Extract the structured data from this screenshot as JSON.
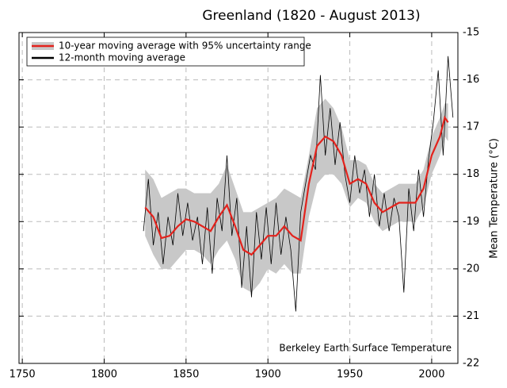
{
  "chart_data": {
    "type": "line",
    "title": "Greenland (1820 - August 2013)",
    "y_label": "Mean Temperature (°C)",
    "annotation": "Berkeley Earth Surface Temperature",
    "xlim": [
      1748,
      2016
    ],
    "ylim": [
      -22,
      -15
    ],
    "xticks": [
      1750,
      1800,
      1850,
      1900,
      1950,
      2000
    ],
    "yticks": [
      -22,
      -21,
      -20,
      -19,
      -18,
      -17,
      -16,
      -15
    ],
    "grid": true,
    "legend": "upper-left",
    "y_axis_side": "right",
    "series": [
      {
        "name": "10-year moving average with 95% uncertainty range",
        "color": "#e3221c",
        "band_color": "#c8c8c8",
        "x": [
          1825,
          1830,
          1835,
          1840,
          1845,
          1850,
          1855,
          1860,
          1865,
          1870,
          1875,
          1880,
          1885,
          1890,
          1895,
          1900,
          1905,
          1910,
          1915,
          1920,
          1925,
          1930,
          1935,
          1940,
          1945,
          1950,
          1955,
          1960,
          1965,
          1970,
          1975,
          1980,
          1985,
          1990,
          1995,
          2000,
          2005,
          2008,
          2010
        ],
        "values": [
          -18.7,
          -18.9,
          -19.35,
          -19.3,
          -19.1,
          -18.95,
          -19.0,
          -19.1,
          -19.2,
          -18.9,
          -18.65,
          -19.1,
          -19.6,
          -19.7,
          -19.5,
          -19.3,
          -19.3,
          -19.1,
          -19.3,
          -19.4,
          -18.2,
          -17.4,
          -17.2,
          -17.3,
          -17.6,
          -18.2,
          -18.1,
          -18.2,
          -18.6,
          -18.8,
          -18.7,
          -18.6,
          -18.6,
          -18.6,
          -18.3,
          -17.6,
          -17.2,
          -16.8,
          -16.9
        ],
        "upper": [
          -17.9,
          -18.1,
          -18.5,
          -18.4,
          -18.3,
          -18.3,
          -18.4,
          -18.4,
          -18.4,
          -18.2,
          -17.8,
          -18.3,
          -18.8,
          -18.8,
          -18.7,
          -18.6,
          -18.5,
          -18.3,
          -18.4,
          -18.5,
          -17.6,
          -16.6,
          -16.4,
          -16.6,
          -17.0,
          -17.7,
          -17.7,
          -17.8,
          -18.2,
          -18.4,
          -18.3,
          -18.2,
          -18.2,
          -18.2,
          -17.9,
          -17.2,
          -16.8,
          -16.5,
          -16.5
        ],
        "lower": [
          -19.3,
          -19.7,
          -20.0,
          -20.0,
          -19.8,
          -19.6,
          -19.6,
          -19.7,
          -19.9,
          -19.6,
          -19.4,
          -19.8,
          -20.4,
          -20.5,
          -20.3,
          -20.0,
          -20.1,
          -19.9,
          -20.1,
          -20.1,
          -18.9,
          -18.2,
          -18.0,
          -18.0,
          -18.2,
          -18.7,
          -18.5,
          -18.6,
          -19.0,
          -19.2,
          -19.1,
          -19.0,
          -19.0,
          -19.0,
          -18.7,
          -18.0,
          -17.6,
          -17.2,
          -17.3
        ]
      },
      {
        "name": "12-month moving average",
        "color": "#000000",
        "x": [
          1824,
          1827,
          1830,
          1833,
          1836,
          1839,
          1842,
          1845,
          1848,
          1851,
          1854,
          1857,
          1860,
          1863,
          1866,
          1869,
          1872,
          1875,
          1878,
          1881,
          1884,
          1887,
          1890,
          1893,
          1896,
          1899,
          1902,
          1905,
          1908,
          1911,
          1914,
          1917,
          1920,
          1923,
          1926,
          1929,
          1932,
          1935,
          1938,
          1941,
          1944,
          1947,
          1950,
          1953,
          1956,
          1959,
          1962,
          1965,
          1968,
          1971,
          1974,
          1977,
          1980,
          1983,
          1986,
          1989,
          1992,
          1995,
          1998,
          2001,
          2004,
          2007,
          2010,
          2013
        ],
        "values": [
          -19.2,
          -18.1,
          -19.5,
          -18.8,
          -19.9,
          -18.9,
          -19.5,
          -18.4,
          -19.3,
          -18.6,
          -19.4,
          -18.9,
          -19.9,
          -18.7,
          -20.1,
          -18.5,
          -19.2,
          -17.6,
          -19.3,
          -18.5,
          -20.4,
          -19.1,
          -20.6,
          -18.8,
          -19.8,
          -18.7,
          -19.9,
          -18.6,
          -19.7,
          -18.9,
          -19.6,
          -20.9,
          -18.8,
          -18.2,
          -17.6,
          -17.9,
          -15.9,
          -17.6,
          -16.6,
          -17.8,
          -16.9,
          -18.0,
          -18.6,
          -17.6,
          -18.4,
          -17.9,
          -18.9,
          -18.0,
          -19.1,
          -18.4,
          -19.2,
          -18.5,
          -18.9,
          -20.5,
          -18.3,
          -19.2,
          -17.9,
          -18.9,
          -17.7,
          -16.9,
          -15.8,
          -17.6,
          -15.5,
          -16.8
        ]
      }
    ]
  }
}
